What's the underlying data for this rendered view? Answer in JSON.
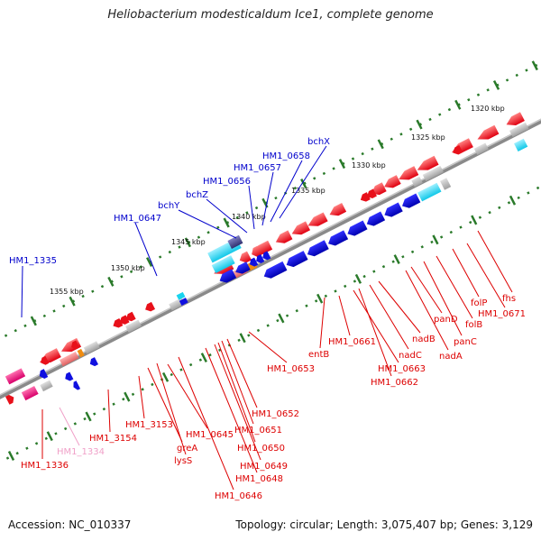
{
  "title": "Heliobacterium modesticaldum Ice1, complete genome",
  "footer": {
    "accession": "Accession: NC_010337",
    "summary": "Topology: circular; Length: 3,075,407 bp; Genes: 3,129"
  },
  "scale_labels": [
    "1320 kbp",
    "1325 kbp",
    "1330 kbp",
    "1335 kbp",
    "1340 kbp",
    "1345 kbp",
    "1350 kbp",
    "1355 kbp"
  ],
  "labels_top": [
    "HM1_1335",
    "HM1_0647",
    "bchY",
    "bchZ",
    "HM1_0656",
    "HM1_0657",
    "HM1_0658",
    "bchX"
  ],
  "labels_bottom": [
    "HM1_1336",
    "HM1_1334",
    "HM1_3154",
    "HM1_3153",
    "greA",
    "lysS",
    "HM1_0645",
    "HM1_0646",
    "HM1_0648",
    "HM1_0649",
    "HM1_0650",
    "HM1_0651",
    "HM1_0652",
    "HM1_0653",
    "entB",
    "HM1_0661",
    "HM1_0663",
    "HM1_0662",
    "nadC",
    "nadB",
    "nadA",
    "panD",
    "panC",
    "folB",
    "folP",
    "HM1_0671",
    "fhs"
  ],
  "colors": {
    "forward_strand": "#e8101a",
    "reverse_strand": "#1010e0",
    "cyan_gene": "#19d4ee",
    "pink_gene": "#e8107a",
    "grey_gene": "#b8b8b8",
    "orange_gene": "#f08c10",
    "backbone": "#888888",
    "tick_green": "#2a7a2a"
  }
}
